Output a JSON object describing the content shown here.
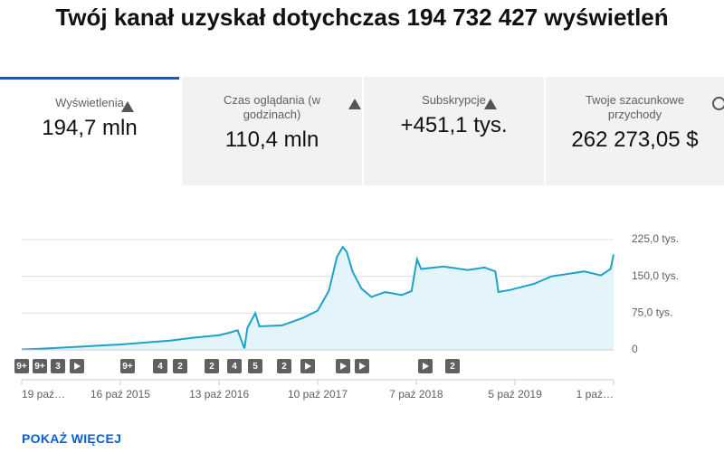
{
  "header": {
    "title": "Twój kanał uzyskał dotychczas 194 732 427 wyświetleń"
  },
  "tabs": [
    {
      "label": "Wyświetlenia",
      "value": "194,7 mln"
    },
    {
      "label": "Czas oglądania (w godzinach)",
      "value": "110,4 mln"
    },
    {
      "label": "Subskrypcje",
      "value": "+451,1 tys."
    },
    {
      "label": "Twoje szacunkowe przychody",
      "value": "262 273,05 $"
    }
  ],
  "chart_data": {
    "type": "area",
    "color": "#1ea2c8",
    "fill": "#e3f5fa",
    "grid": true,
    "x": [
      "2014-10-19",
      "2014-12-15",
      "2015-03-01",
      "2015-06-01",
      "2015-10-16",
      "2016-01-15",
      "2016-04-15",
      "2016-07-15",
      "2016-10-13",
      "2016-11-20",
      "2016-12-20",
      "2017-01-14",
      "2017-01-25",
      "2017-02-23",
      "2017-03-10",
      "2017-06-01",
      "2017-08-15",
      "2017-10-10",
      "2017-11-20",
      "2017-12-20",
      "2018-01-10",
      "2018-01-25",
      "2018-02-15",
      "2018-03-20",
      "2018-04-25",
      "2018-06-15",
      "2018-08-15",
      "2018-09-20",
      "2018-10-10",
      "2018-10-25",
      "2019-01-15",
      "2019-04-15",
      "2019-06-15",
      "2019-07-25",
      "2019-08-05",
      "2019-09-15",
      "2019-12-15",
      "2020-02-15",
      "2020-04-15",
      "2020-06-15",
      "2020-08-15",
      "2020-09-20",
      "2020-10-01"
    ],
    "values": [
      1000,
      2000,
      4000,
      7000,
      11000,
      15000,
      19000,
      25000,
      30000,
      35000,
      40000,
      3000,
      45000,
      75000,
      48000,
      50000,
      65000,
      80000,
      120000,
      190000,
      210000,
      200000,
      160000,
      125000,
      108000,
      118000,
      112000,
      120000,
      185000,
      165000,
      170000,
      163000,
      168000,
      160000,
      118000,
      122000,
      135000,
      150000,
      155000,
      160000,
      152000,
      165000,
      195000
    ],
    "xlim": [
      "2014-10-19",
      "2020-10-01"
    ],
    "xticks": [
      {
        "value": "2014-10-19",
        "label": "19 paź…"
      },
      {
        "value": "2015-10-16",
        "label": "16 paź 2015"
      },
      {
        "value": "2016-10-13",
        "label": "13 paź 2016"
      },
      {
        "value": "2017-10-10",
        "label": "10 paź 2017"
      },
      {
        "value": "2018-10-07",
        "label": "7 paź 2018"
      },
      {
        "value": "2019-10-05",
        "label": "5 paź 2019"
      },
      {
        "value": "2020-10-01",
        "label": "1 paź…"
      }
    ],
    "ylim": [
      0,
      225000
    ],
    "yticks": [
      0,
      {
        "value": 75000,
        "label": "75,0 tys."
      },
      {
        "value": 150000,
        "label": "150,0 tys."
      },
      {
        "value": 225000,
        "label": "225,0 tys."
      }
    ],
    "annotations": [
      "9+",
      "9+",
      "3",
      "9+",
      "4",
      "2",
      "2",
      "4",
      "5",
      "2",
      "2"
    ]
  },
  "button": "POKAŻ WIĘCEJ"
}
